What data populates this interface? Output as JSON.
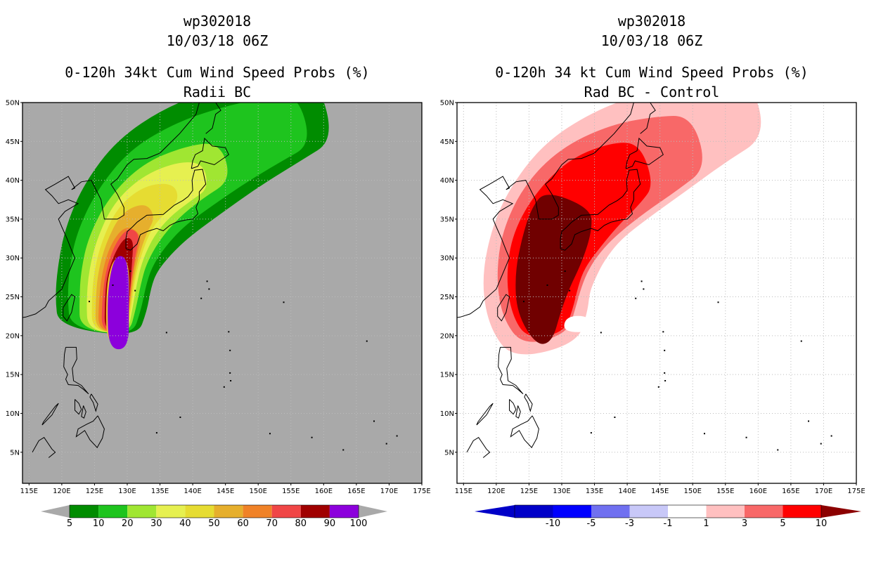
{
  "panels": [
    {
      "title_line1": "wp302018",
      "title_line2": "10/03/18 06Z",
      "title_line3": "0-120h 34kt Cum Wind Speed Probs (%)",
      "title_line4": "Radii BC",
      "background": "#a9a9a9"
    },
    {
      "title_line1": "wp302018",
      "title_line2": "10/03/18 06Z",
      "title_line3": "0-120h 34 kt Cum Wind Speed Probs (%)",
      "title_line4": "Rad BC - Control",
      "background": "#ffffff"
    }
  ],
  "chart_data": [
    {
      "type": "heatmap",
      "title": "0-120h 34kt Cum Wind Speed Probs (%) Radii BC",
      "xlim": [
        114,
        175
      ],
      "ylim": [
        1,
        50
      ],
      "x_ticks": [
        "115E",
        "120E",
        "125E",
        "130E",
        "135E",
        "140E",
        "145E",
        "150E",
        "155E",
        "160E",
        "165E",
        "170E",
        "175E"
      ],
      "y_ticks": [
        "5N",
        "10N",
        "15N",
        "20N",
        "25N",
        "30N",
        "35N",
        "40N",
        "45N",
        "50N"
      ],
      "colorbar": {
        "labels": [
          "5",
          "10",
          "20",
          "30",
          "40",
          "50",
          "60",
          "70",
          "80",
          "90",
          "100"
        ],
        "colors": [
          "#008c00",
          "#1ec41e",
          "#a0e632",
          "#e6f050",
          "#e6dc32",
          "#e6af2d",
          "#f08228",
          "#f04646",
          "#a00000",
          "#8c00dc"
        ],
        "arrow_color": "#a9a9a9"
      },
      "levels": [
        {
          "value": 5,
          "color": "#008c00",
          "track": [
            [
              125.5,
              20.5
            ],
            [
              126,
              24
            ],
            [
              126.5,
              27.5
            ],
            [
              127.5,
              31
            ],
            [
              130,
              35
            ],
            [
              134,
              39
            ],
            [
              140,
              42.5
            ],
            [
              147,
              45.5
            ],
            [
              154,
              48
            ],
            [
              160,
              50
            ]
          ],
          "hw": [
            6,
            7,
            7.2,
            7.5,
            8,
            8.3,
            8,
            7,
            6,
            5
          ]
        },
        {
          "value": 10,
          "color": "#1ec41e",
          "track": [
            [
              126,
              20.5
            ],
            [
              126.5,
              24
            ],
            [
              127,
              27.5
            ],
            [
              128,
              31
            ],
            [
              130.5,
              35
            ],
            [
              134.5,
              39
            ],
            [
              140,
              42
            ],
            [
              146,
              44.5
            ],
            [
              152,
              46.5
            ],
            [
              157,
              48
            ]
          ],
          "hw": [
            4.7,
            5.6,
            5.9,
            6.1,
            6.3,
            6.4,
            6,
            5.2,
            4.3,
            3.5
          ]
        },
        {
          "value": 20,
          "color": "#a0e632",
          "track": [
            [
              126.5,
              20.5
            ],
            [
              127,
              24
            ],
            [
              127.5,
              27.5
            ],
            [
              128.5,
              31
            ],
            [
              131,
              35
            ],
            [
              135,
              38.6
            ],
            [
              140,
              41
            ],
            [
              145,
              42.5
            ]
          ],
          "hw": [
            3.7,
            4.3,
            4.6,
            4.7,
            4.7,
            4.4,
            3.6,
            2.6
          ]
        },
        {
          "value": 30,
          "color": "#e6f050",
          "track": [
            [
              127,
              20.5
            ],
            [
              127.3,
              24
            ],
            [
              127.8,
              27.5
            ],
            [
              128.8,
              31
            ],
            [
              131,
              35
            ],
            [
              134.5,
              38
            ],
            [
              139,
              40
            ],
            [
              142,
              40.5
            ]
          ],
          "hw": [
            3,
            3.5,
            3.7,
            3.7,
            3.7,
            3.3,
            2.6,
            1.6
          ]
        },
        {
          "value": 40,
          "color": "#e6dc32",
          "track": [
            [
              127.3,
              20.5
            ],
            [
              127.6,
              24
            ],
            [
              128,
              27.5
            ],
            [
              129,
              31
            ],
            [
              131,
              35
            ],
            [
              134,
              37.4
            ],
            [
              137.5,
              38.5
            ]
          ],
          "hw": [
            2.6,
            3,
            3.1,
            3.1,
            2.9,
            2.3,
            1.2
          ]
        },
        {
          "value": 50,
          "color": "#e6af2d",
          "track": [
            [
              127.5,
              20.5
            ],
            [
              127.8,
              24
            ],
            [
              128.2,
              27.5
            ],
            [
              129.2,
              31
            ],
            [
              131,
              34.5
            ],
            [
              133.5,
              36.2
            ]
          ],
          "hw": [
            2.3,
            2.6,
            2.7,
            2.6,
            2.3,
            1.2
          ]
        },
        {
          "value": 60,
          "color": "#f08228",
          "track": [
            [
              127.7,
              20.5
            ],
            [
              128,
              24
            ],
            [
              128.4,
              27.5
            ],
            [
              129.4,
              31
            ],
            [
              131,
              33.6
            ]
          ],
          "hw": [
            2.1,
            2.3,
            2.3,
            2.1,
            1.4
          ]
        },
        {
          "value": 70,
          "color": "#f04646",
          "track": [
            [
              128,
              20.5
            ],
            [
              128.2,
              24
            ],
            [
              128.6,
              27.5
            ],
            [
              129.6,
              31
            ],
            [
              131,
              33.5
            ]
          ],
          "hw": [
            1.9,
            2,
            2,
            1.7,
            1
          ]
        },
        {
          "value": 80,
          "color": "#a00000",
          "track": [
            [
              128.3,
              20.5
            ],
            [
              128.4,
              24
            ],
            [
              128.7,
              27.5
            ],
            [
              129.5,
              30.5
            ],
            [
              130.3,
              32.5
            ]
          ],
          "hw": [
            1.7,
            1.8,
            1.8,
            1.3,
            0.6
          ]
        },
        {
          "value": 90,
          "color": "#f0c830",
          "track": [
            [
              128.5,
              19
            ],
            [
              128.5,
              24
            ],
            [
              128.7,
              27.5
            ],
            [
              129,
              30
            ]
          ],
          "hw": [
            1.6,
            1.7,
            1.6,
            0.9
          ]
        },
        {
          "value": 100,
          "color": "#8c00dc",
          "track": [
            [
              128.7,
              18.3
            ],
            [
              128.6,
              24
            ],
            [
              128.8,
              27.8
            ],
            [
              129,
              30.2
            ]
          ],
          "hw": [
            1.5,
            1.6,
            1.4,
            0.7
          ]
        }
      ]
    },
    {
      "type": "heatmap",
      "title": "0-120h 34 kt Cum Wind Speed Probs (%) Rad BC - Control",
      "xlim": [
        114,
        175
      ],
      "ylim": [
        1,
        50
      ],
      "x_ticks": [
        "115E",
        "120E",
        "125E",
        "130E",
        "135E",
        "140E",
        "145E",
        "150E",
        "155E",
        "160E",
        "165E",
        "170E",
        "175E"
      ],
      "y_ticks": [
        "5N",
        "10N",
        "15N",
        "20N",
        "25N",
        "30N",
        "35N",
        "40N",
        "45N",
        "50N"
      ],
      "colorbar": {
        "labels": [
          "-10",
          "-5",
          "-3",
          "-1",
          "1",
          "3",
          "5",
          "10"
        ],
        "colors": [
          "#0000c8",
          "#0000ff",
          "#7070f0",
          "#c8c8f8",
          "#ffffff",
          "#ffc0c0",
          "#f86868",
          "#ff0000"
        ],
        "left_arrow_color": "#0000c8",
        "right_arrow_color": "#8c0000"
      },
      "levels": [
        {
          "value": 1,
          "color": "#ffc0c0",
          "track": [
            [
              127.5,
              18
            ],
            [
              126.5,
              22
            ],
            [
              126,
              26
            ],
            [
              127,
              30
            ],
            [
              129,
              34
            ],
            [
              133,
              38.5
            ],
            [
              139,
              42
            ],
            [
              146,
              45
            ],
            [
              153,
              47.5
            ],
            [
              160,
              49.5
            ]
          ],
          "hw": [
            5,
            7.5,
            8.2,
            8.5,
            8.6,
            8.5,
            8,
            7,
            5.5,
            4
          ]
        },
        {
          "value": 3,
          "color": "#f86868",
          "track": [
            [
              127.5,
              19.5
            ],
            [
              126.5,
              23
            ],
            [
              126.5,
              27
            ],
            [
              127.5,
              31
            ],
            [
              130,
              35
            ],
            [
              134,
              38.5
            ],
            [
              140,
              41.5
            ],
            [
              146,
              43.5
            ],
            [
              151,
              45
            ]
          ],
          "hw": [
            3.5,
            5.6,
            6.5,
            7,
            7.2,
            7,
            6.2,
            5,
            3.5
          ]
        },
        {
          "value": 5,
          "color": "#ff0000",
          "track": [
            [
              127.5,
              20
            ],
            [
              127,
              23
            ],
            [
              127,
              27
            ],
            [
              128,
              31
            ],
            [
              131,
              35
            ],
            [
              135,
              38.5
            ],
            [
              140,
              41
            ],
            [
              143,
              42
            ]
          ],
          "hw": [
            2.8,
            4.6,
            5.5,
            5.9,
            6,
            5.6,
            4.4,
            2.8
          ]
        },
        {
          "value": 10,
          "color": "#700000",
          "track": [
            [
              127.3,
              19
            ],
            [
              126.5,
              23
            ],
            [
              127,
              27
            ],
            [
              128.5,
              31
            ],
            [
              130,
              35
            ],
            [
              131,
              37.5
            ]
          ],
          "hw": [
            1.2,
            3.3,
            4.2,
            4.8,
            4.8,
            3.6
          ]
        },
        {
          "value": -1,
          "color": "#ffffff",
          "track": [
            [
              132.5,
              20.5
            ],
            [
              132.5,
              22.5
            ]
          ],
          "hw": [
            2.3,
            1.8
          ]
        }
      ]
    }
  ]
}
